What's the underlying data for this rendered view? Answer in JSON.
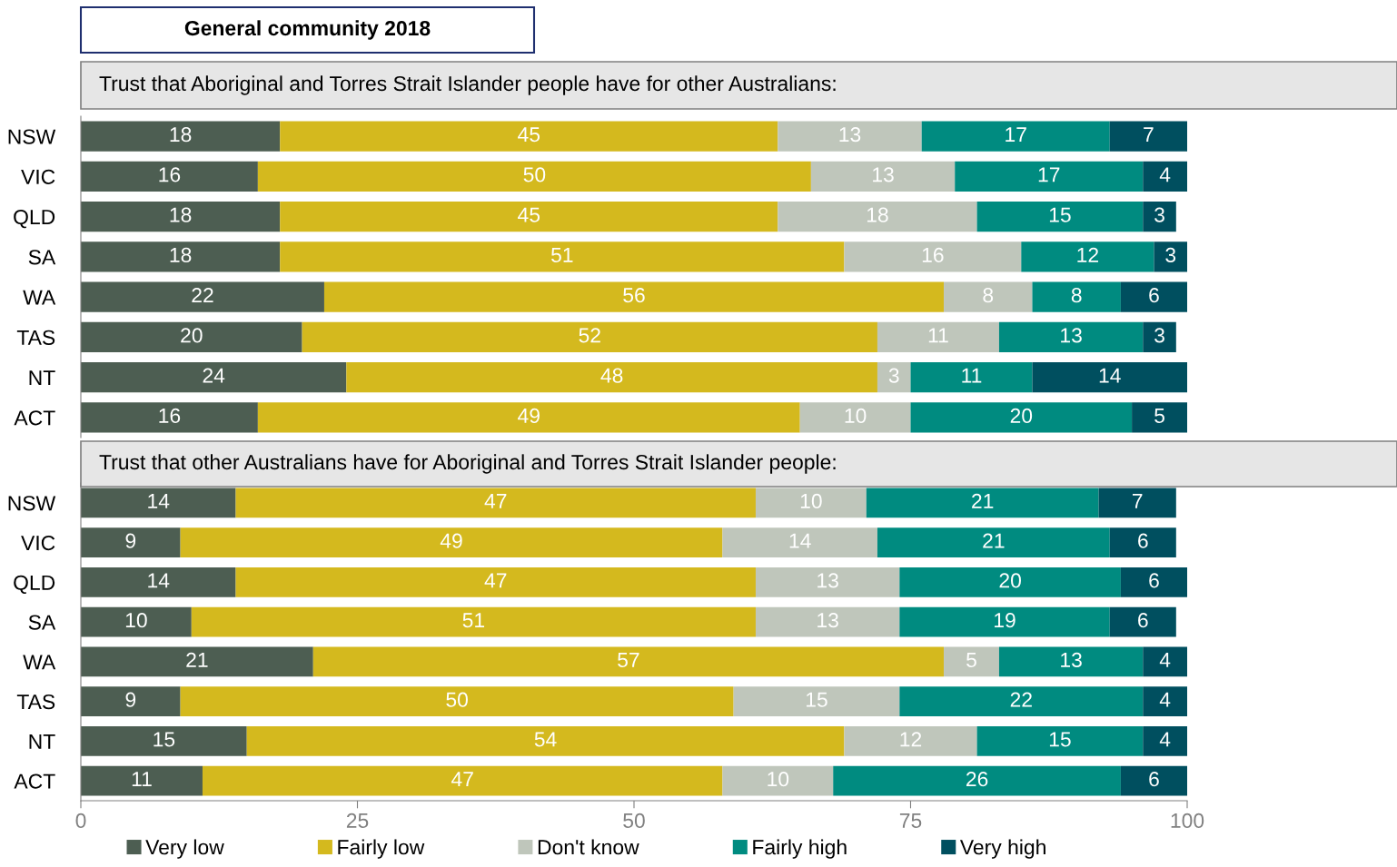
{
  "chart_data": [
    {
      "type": "bar",
      "orientation": "horizontal",
      "stacked": true,
      "title": "General community 2018",
      "subtitle": "Trust that Aboriginal and Torres Strait Islander people have for other Australians:",
      "categories": [
        "NSW",
        "VIC",
        "QLD",
        "SA",
        "WA",
        "TAS",
        "NT",
        "ACT"
      ],
      "xlim": [
        0,
        100
      ],
      "xticks": [
        0,
        25,
        50,
        75,
        100
      ],
      "tick_labels": "y",
      "data_labels": true,
      "grid": false,
      "legend": false,
      "series": [
        {
          "color": "#4d5e52",
          "values": [
            18,
            16,
            18,
            18,
            22,
            20,
            24,
            16
          ]
        },
        {
          "color": "#d4b91e",
          "values": [
            45,
            50,
            45,
            51,
            56,
            52,
            48,
            49
          ]
        },
        {
          "color": "#bfc6bb",
          "values": [
            13,
            13,
            18,
            16,
            8,
            11,
            3,
            10
          ]
        },
        {
          "color": "#008b80",
          "values": [
            17,
            17,
            15,
            12,
            8,
            13,
            11,
            20
          ]
        },
        {
          "color": "#004f5f",
          "values": [
            7,
            4,
            3,
            3,
            6,
            3,
            14,
            5
          ]
        }
      ]
    },
    {
      "type": "bar",
      "orientation": "horizontal",
      "stacked": true,
      "subtitle": "Trust that other Australians have for Aboriginal and Torres Strait Islander people:",
      "categories": [
        "NSW",
        "VIC",
        "QLD",
        "SA",
        "WA",
        "TAS",
        "NT",
        "ACT"
      ],
      "xlim": [
        0,
        100
      ],
      "xticks": [
        0,
        25,
        50,
        75,
        100
      ],
      "data_labels": true,
      "grid": false,
      "legend": "bottom",
      "series": [
        {
          "name": "Very low",
          "color": "#4d5e52",
          "values": [
            14,
            9,
            14,
            10,
            21,
            9,
            15,
            11
          ]
        },
        {
          "name": "Fairly low",
          "color": "#d4b91e",
          "values": [
            47,
            49,
            47,
            51,
            57,
            50,
            54,
            47
          ]
        },
        {
          "name": "Don't know",
          "color": "#bfc6bb",
          "values": [
            10,
            14,
            13,
            13,
            5,
            15,
            12,
            10
          ]
        },
        {
          "name": "Fairly high",
          "color": "#008b80",
          "values": [
            21,
            21,
            20,
            19,
            13,
            22,
            15,
            26
          ]
        },
        {
          "name": "Very high",
          "color": "#004f5f",
          "values": [
            7,
            6,
            6,
            6,
            4,
            4,
            4,
            6
          ]
        }
      ]
    }
  ]
}
